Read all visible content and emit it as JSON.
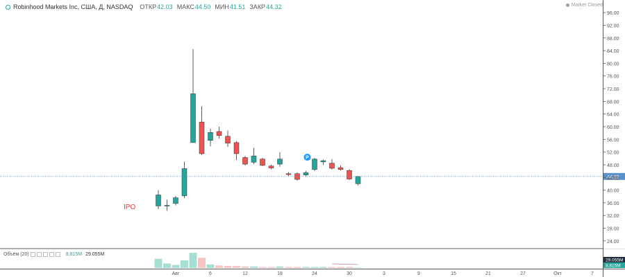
{
  "header": {
    "symbol": "Robinhood Markets Inc, США, Д, NASDAQ",
    "ohlc": [
      {
        "label": "ОТКР",
        "value": "42.03"
      },
      {
        "label": "МАКС",
        "value": "44.50"
      },
      {
        "label": "МИН",
        "value": "41.51"
      },
      {
        "label": "ЗАКР",
        "value": "44.32"
      }
    ],
    "market_status": "Market Closed"
  },
  "volume_legend": {
    "label": "Объём (20)",
    "value1": "8.815M",
    "value2": "29.055M"
  },
  "colors": {
    "up": "#26a69a",
    "down": "#ef5350",
    "up_volume": "#a5dfd3",
    "down_volume": "#f7c3c1",
    "last_price_line": "#5b8fc9",
    "ipo_text": "#e53935",
    "marker_bg": "#2196f3"
  },
  "chart_data": {
    "type": "candlestick",
    "x_tick_labels": [
      "Авг",
      "6",
      "12",
      "18",
      "24",
      "30",
      "3",
      "9",
      "15",
      "21",
      "27",
      "Окт",
      "7"
    ],
    "y_ticks": [
      "24.00",
      "28.00",
      "32.00",
      "36.00",
      "40.00",
      "44.00",
      "48.00",
      "52.00",
      "56.00",
      "60.00",
      "64.00",
      "68.00",
      "72.00",
      "76.00",
      "80.00",
      "84.00",
      "88.00",
      "92.00",
      "96.00"
    ],
    "ylim": [
      22,
      98
    ],
    "last_price": "44.32",
    "annotations": [
      {
        "text": "IPO"
      },
      {
        "text": "P"
      }
    ],
    "volume_scale_labels": [
      "29.055M",
      "8.815M"
    ],
    "candles": [
      {
        "o": 35.0,
        "h": 40.0,
        "l": 34.0,
        "c": 38.5,
        "v": 18
      },
      {
        "o": 35.0,
        "h": 37.0,
        "l": 33.5,
        "c": 35.2,
        "v": 9
      },
      {
        "o": 35.8,
        "h": 38.2,
        "l": 35.2,
        "c": 37.6,
        "v": 6
      },
      {
        "o": 38.2,
        "h": 49.0,
        "l": 37.5,
        "c": 46.8,
        "v": 15
      },
      {
        "o": 55.0,
        "h": 84.5,
        "l": 55.0,
        "c": 70.4,
        "v": 30
      },
      {
        "o": 61.5,
        "h": 66.5,
        "l": 51.0,
        "c": 51.5,
        "v": 20
      },
      {
        "o": 55.7,
        "h": 59.4,
        "l": 53.8,
        "c": 58.2,
        "v": 7
      },
      {
        "o": 58.5,
        "h": 60.0,
        "l": 56.2,
        "c": 57.2,
        "v": 5
      },
      {
        "o": 57.0,
        "h": 58.8,
        "l": 53.6,
        "c": 54.8,
        "v": 4
      },
      {
        "o": 55.0,
        "h": 55.5,
        "l": 49.5,
        "c": 51.5,
        "v": 4
      },
      {
        "o": 50.3,
        "h": 50.8,
        "l": 47.8,
        "c": 48.2,
        "v": 3
      },
      {
        "o": 48.8,
        "h": 53.4,
        "l": 48.2,
        "c": 50.8,
        "v": 3
      },
      {
        "o": 49.8,
        "h": 50.2,
        "l": 47.6,
        "c": 47.8,
        "v": 2
      },
      {
        "o": 47.6,
        "h": 48.1,
        "l": 46.6,
        "c": 47.0,
        "v": 2
      },
      {
        "o": 48.2,
        "h": 52.0,
        "l": 47.4,
        "c": 49.8,
        "v": 3
      },
      {
        "o": 45.2,
        "h": 45.7,
        "l": 44.5,
        "c": 44.9,
        "v": 2
      },
      {
        "o": 45.2,
        "h": 45.6,
        "l": 43.0,
        "c": 43.4,
        "v": 2
      },
      {
        "o": 44.8,
        "h": 46.1,
        "l": 44.2,
        "c": 45.5,
        "v": 2
      },
      {
        "o": 46.5,
        "h": 50.2,
        "l": 46.0,
        "c": 49.8,
        "v": 2
      },
      {
        "o": 48.9,
        "h": 49.6,
        "l": 47.9,
        "c": 49.3,
        "v": 2
      },
      {
        "o": 48.5,
        "h": 49.8,
        "l": 46.5,
        "c": 46.9,
        "v": 2
      },
      {
        "o": 47.1,
        "h": 47.8,
        "l": 46.2,
        "c": 46.5,
        "v": 2
      },
      {
        "o": 46.2,
        "h": 46.6,
        "l": 43.2,
        "c": 43.5,
        "v": 2
      },
      {
        "o": 42.03,
        "h": 44.5,
        "l": 41.51,
        "c": 44.32,
        "v": 1
      }
    ]
  }
}
